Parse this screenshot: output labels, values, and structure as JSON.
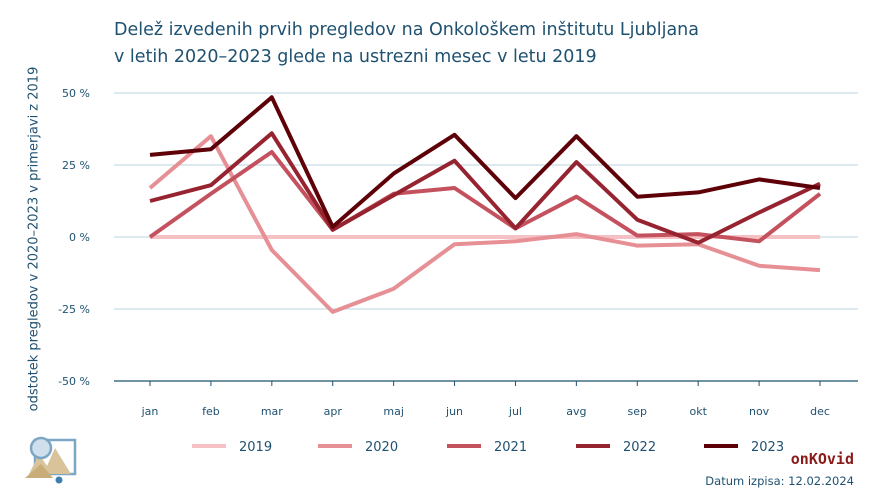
{
  "title_line1": "Delež izvedenih prvih pregledov na Onkološkem inštitutu Ljubljana",
  "title_line2": "v letih 2020–2023 glede na ustrezni mesec v letu 2019",
  "ylabel": "odstotek pregledov v 2020–2023 v primerjavi z 2019",
  "brand": "onKOvid",
  "date_label": "Datum izpisa: 12.02.2024",
  "logo_icon": "chart-picture-icon",
  "chart_data": {
    "type": "line",
    "title": "Delež izvedenih prvih pregledov na Onkološkem inštitutu Ljubljana v letih 2020–2023 glede na ustrezni mesec v letu 2019",
    "ylabel": "odstotek pregledov v 2020–2023 v primerjavi z 2019",
    "xlabel": "",
    "categories": [
      "jan",
      "feb",
      "mar",
      "apr",
      "maj",
      "jun",
      "jul",
      "avg",
      "sep",
      "okt",
      "nov",
      "dec"
    ],
    "ylim": [
      -50,
      50
    ],
    "yticks": [
      -50,
      -25,
      0,
      25,
      50
    ],
    "ytick_labels": [
      "-50 %",
      "-25 %",
      "0 %",
      "25 %",
      "50 %"
    ],
    "grid": "horizontal",
    "legend_position": "bottom",
    "series": [
      {
        "name": "2019",
        "color": "#f6c1c4",
        "values": [
          0,
          0,
          0,
          0,
          0,
          0,
          0,
          0,
          0,
          0,
          0,
          0
        ]
      },
      {
        "name": "2020",
        "color": "#e69096",
        "values": [
          17,
          35,
          -4.5,
          -26,
          -18,
          -2.5,
          -1.5,
          1,
          -3,
          -2.5,
          -10,
          -11.5
        ]
      },
      {
        "name": "2021",
        "color": "#c4525e",
        "values": [
          0,
          15,
          29.5,
          2.5,
          15,
          17,
          3,
          14,
          0.5,
          1,
          -1.5,
          15
        ]
      },
      {
        "name": "2022",
        "color": "#962430",
        "values": [
          12.5,
          18,
          36,
          2.5,
          14.5,
          26.5,
          3,
          26,
          6,
          -2,
          8.5,
          18.5
        ]
      },
      {
        "name": "2023",
        "color": "#5e0008",
        "values": [
          28.5,
          30.5,
          48.5,
          3.5,
          22,
          35.5,
          13.5,
          35,
          14,
          15.5,
          20,
          17
        ]
      }
    ]
  }
}
